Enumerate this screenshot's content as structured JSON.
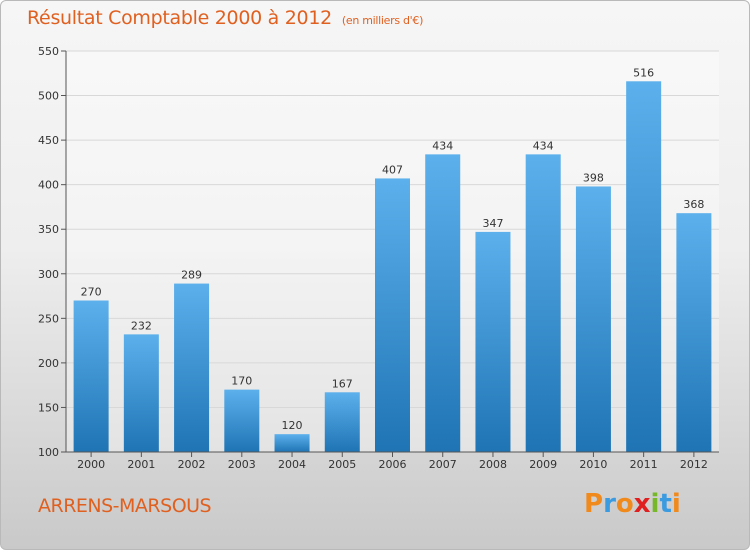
{
  "header": {
    "title": "Résultat Comptable 2000 à 2012",
    "unit": "(en milliers d'€)"
  },
  "footer": {
    "place": "ARRENS-MARSOUS",
    "logo": "Proxiti",
    "logo_colors": [
      "#f08a1c",
      "#3b9be0",
      "#f08a1c",
      "#e02020",
      "#76b82a",
      "#3b9be0",
      "#f08a1c"
    ]
  },
  "colors": {
    "bar_top": "#5cb0ec",
    "bar_bottom": "#1f74b4",
    "axis": "#555555",
    "grid": "#d8d8d8",
    "accent": "#e06020"
  },
  "chart_data": {
    "type": "bar",
    "categories": [
      "2000",
      "2001",
      "2002",
      "2003",
      "2004",
      "2005",
      "2006",
      "2007",
      "2008",
      "2009",
      "2010",
      "2011",
      "2012"
    ],
    "values": [
      270,
      232,
      289,
      170,
      120,
      167,
      407,
      434,
      347,
      434,
      398,
      516,
      368
    ],
    "ylim": [
      100,
      550
    ],
    "yticks": [
      100,
      150,
      200,
      250,
      300,
      350,
      400,
      450,
      500,
      550
    ],
    "grid": true
  }
}
